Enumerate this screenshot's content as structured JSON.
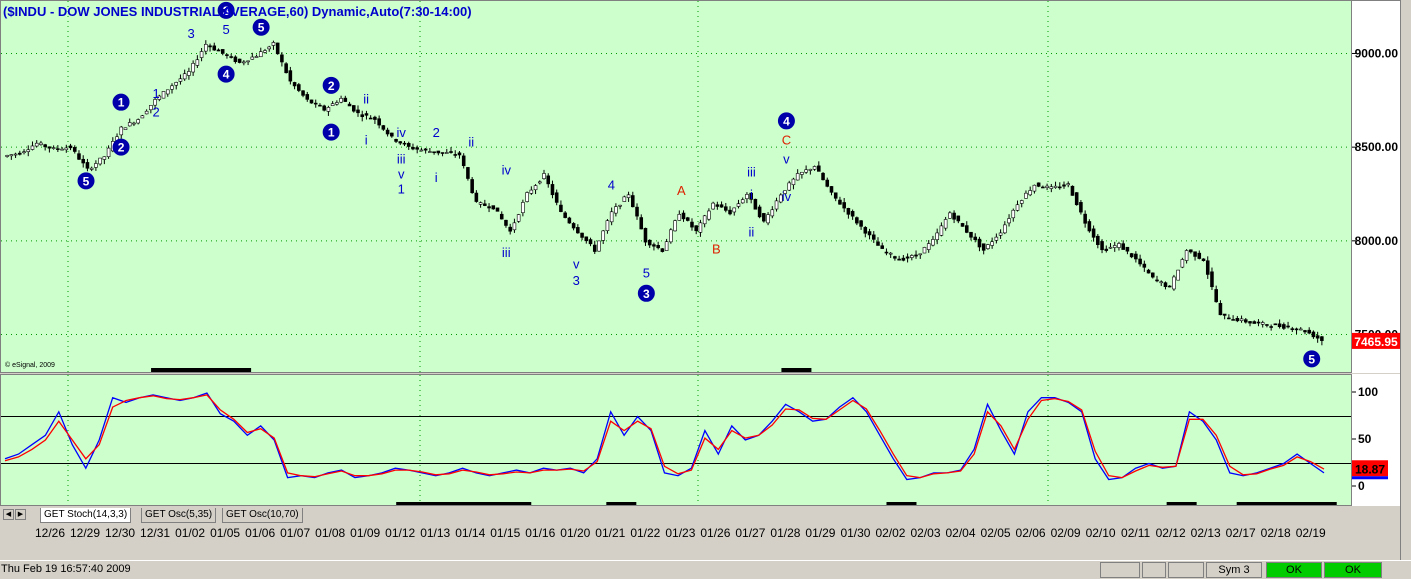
{
  "title": "($INDU - DOW JONES INDUSTRIAL AVERAGE,60) Dynamic,Auto(7:30-14:00)",
  "copyright": "© eSignal, 2009",
  "last_price": "7465.95",
  "colors": {
    "panel_bg": "#ccffcc",
    "wave_blue": "#0000cc",
    "wave_red": "#dd2200",
    "stoch_k": "#0000ff",
    "stoch_d": "#ff0000",
    "last_price_bg": "#ff0000"
  },
  "tabs": [
    {
      "label": "GET Stoch(14,3,3)",
      "active": true
    },
    {
      "label": "GET Osc(5,35)",
      "active": false
    },
    {
      "label": "GET Osc(10,70)",
      "active": false
    }
  ],
  "scroll_icons": [
    "left-arrow-icon",
    "right-arrow-icon"
  ],
  "status": {
    "datetime": "Thu Feb 19 16:57:40 2009",
    "sym": "Sym 3",
    "ok1": "OK",
    "ok2": "OK"
  },
  "chart_data": [
    {
      "type": "candlestick",
      "title": "($INDU - DOW JONES INDUSTRIAL AVERAGE,60) Dynamic,Auto(7:30-14:00)",
      "ylim": [
        7300,
        9280
      ],
      "y_ticks": [
        {
          "value": 9000,
          "label": "9000.00"
        },
        {
          "value": 8500,
          "label": "8500.00"
        },
        {
          "value": 8000,
          "label": "8000.00"
        },
        {
          "value": 7500,
          "label": "7500.00"
        }
      ],
      "x_ticks": [
        "12/26",
        "12/29",
        "12/30",
        "12/31",
        "01/02",
        "01/05",
        "01/06",
        "01/07",
        "01/08",
        "01/09",
        "01/12",
        "01/13",
        "01/14",
        "01/15",
        "01/16",
        "01/20",
        "01/21",
        "01/22",
        "01/23",
        "01/26",
        "01/27",
        "01/28",
        "01/29",
        "01/30",
        "02/02",
        "02/03",
        "02/04",
        "02/05",
        "02/06",
        "02/09",
        "02/10",
        "02/11",
        "02/12",
        "02/13",
        "02/17",
        "02/18",
        "02/19"
      ],
      "last_value": 7465.95,
      "close_path": [
        8450,
        8470,
        8520,
        8490,
        8500,
        8380,
        8450,
        8600,
        8650,
        8750,
        8830,
        8900,
        9050,
        9000,
        8950,
        8990,
        9050,
        8850,
        8750,
        8700,
        8760,
        8680,
        8650,
        8550,
        8500,
        8480,
        8470,
        8460,
        8200,
        8180,
        8050,
        8250,
        8350,
        8150,
        8050,
        7950,
        8150,
        8250,
        8000,
        7950,
        8150,
        8050,
        8200,
        8150,
        8250,
        8100,
        8250,
        8350,
        8400,
        8250,
        8150,
        8050,
        7950,
        7900,
        7920,
        8000,
        8150,
        8050,
        7950,
        8050,
        8200,
        8300,
        8280,
        8300,
        8100,
        7950,
        7980,
        7900,
        7800,
        7750,
        7950,
        7900,
        7600,
        7580,
        7560,
        7550,
        7540,
        7520,
        7470
      ],
      "waves": [
        {
          "label": "5",
          "style": "circle",
          "color": "blue",
          "x": "12/29",
          "y": 8320
        },
        {
          "label": "1",
          "style": "circle",
          "color": "blue",
          "x": "12/30",
          "y": 8740
        },
        {
          "label": "2",
          "style": "circle",
          "color": "blue",
          "x": "12/30",
          "y": 8500
        },
        {
          "label": "1",
          "style": "text",
          "color": "blue",
          "x": "12/31",
          "y": 8790
        },
        {
          "label": "2",
          "style": "text",
          "color": "blue",
          "x": "12/31",
          "y": 8690
        },
        {
          "label": "3",
          "style": "text",
          "color": "blue",
          "x": "01/02",
          "y": 9110
        },
        {
          "label": "3",
          "style": "circle",
          "color": "blue",
          "x": "01/05",
          "y": 9230
        },
        {
          "label": "5",
          "style": "text",
          "color": "blue",
          "x": "01/05",
          "y": 9130
        },
        {
          "label": "4",
          "style": "text",
          "color": "blue",
          "x": "01/05",
          "y": 8880
        },
        {
          "label": "4",
          "style": "circle",
          "color": "blue",
          "x": "01/05",
          "y": 8890
        },
        {
          "label": "5",
          "style": "circle",
          "color": "blue",
          "x": "01/06",
          "y": 9140
        },
        {
          "label": "1",
          "style": "circle",
          "color": "blue",
          "x": "01/08",
          "y": 8580
        },
        {
          "label": "2",
          "style": "circle",
          "color": "blue",
          "x": "01/08",
          "y": 8830
        },
        {
          "label": "ii",
          "style": "text",
          "color": "blue",
          "x": "01/09",
          "y": 8760
        },
        {
          "label": "i",
          "style": "text",
          "color": "blue",
          "x": "01/09",
          "y": 8540
        },
        {
          "label": "iv",
          "style": "text",
          "color": "blue",
          "x": "01/12",
          "y": 8580
        },
        {
          "label": "iii",
          "style": "text",
          "color": "blue",
          "x": "01/12",
          "y": 8440
        },
        {
          "label": "2",
          "style": "text",
          "color": "blue",
          "x": "01/13",
          "y": 8580
        },
        {
          "label": "v",
          "style": "text",
          "color": "blue",
          "x": "01/12",
          "y": 8360
        },
        {
          "label": "1",
          "style": "text",
          "color": "blue",
          "x": "01/12",
          "y": 8280
        },
        {
          "label": "ii",
          "style": "text",
          "color": "blue",
          "x": "01/14",
          "y": 8530
        },
        {
          "label": "i",
          "style": "text",
          "color": "blue",
          "x": "01/13",
          "y": 8340
        },
        {
          "label": "iv",
          "style": "text",
          "color": "blue",
          "x": "01/15",
          "y": 8380
        },
        {
          "label": "iii",
          "style": "text",
          "color": "blue",
          "x": "01/15",
          "y": 7940
        },
        {
          "label": "v",
          "style": "text",
          "color": "blue",
          "x": "01/20",
          "y": 7880
        },
        {
          "label": "3",
          "style": "text",
          "color": "blue",
          "x": "01/20",
          "y": 7790
        },
        {
          "label": "4",
          "style": "text",
          "color": "blue",
          "x": "01/21",
          "y": 8300
        },
        {
          "label": "5",
          "style": "text",
          "color": "blue",
          "x": "01/22",
          "y": 7830
        },
        {
          "label": "3",
          "style": "circle",
          "color": "blue",
          "x": "01/22",
          "y": 7720
        },
        {
          "label": "A",
          "style": "text",
          "color": "red",
          "x": "01/23",
          "y": 8270
        },
        {
          "label": "B",
          "style": "text",
          "color": "red",
          "x": "01/26",
          "y": 7960
        },
        {
          "label": "i",
          "style": "text",
          "color": "blue",
          "x": "01/27",
          "y": 8250
        },
        {
          "label": "ii",
          "style": "text",
          "color": "blue",
          "x": "01/27",
          "y": 8050
        },
        {
          "label": "iii",
          "style": "text",
          "color": "blue",
          "x": "01/27",
          "y": 8370
        },
        {
          "label": "iv",
          "style": "text",
          "color": "blue",
          "x": "01/28",
          "y": 8240
        },
        {
          "label": "v",
          "style": "text",
          "color": "blue",
          "x": "01/28",
          "y": 8440
        },
        {
          "label": "C",
          "style": "text",
          "color": "red",
          "x": "01/28",
          "y": 8540
        },
        {
          "label": "4",
          "style": "circle",
          "color": "blue",
          "x": "01/28",
          "y": 8640
        },
        {
          "label": "5",
          "style": "circle",
          "color": "blue",
          "x": "02/19",
          "y": 7370
        }
      ],
      "bars": [
        {
          "x_from": "12/31",
          "x_to": "01/05",
          "y": 9380
        },
        {
          "x_from": "01/28",
          "x_to": "01/28",
          "y": 9380
        }
      ]
    },
    {
      "type": "line",
      "title": "GET Stoch(14,3,3)",
      "ylim": [
        0,
        100
      ],
      "y_ticks": [
        100,
        50,
        0
      ],
      "hlines": [
        75,
        25
      ],
      "last_value": 18.87,
      "series": [
        {
          "name": "%K",
          "color": "#0000ff",
          "values": [
            30,
            35,
            45,
            55,
            80,
            45,
            20,
            50,
            95,
            90,
            95,
            98,
            95,
            92,
            95,
            100,
            78,
            70,
            55,
            65,
            50,
            10,
            12,
            10,
            15,
            18,
            10,
            12,
            15,
            20,
            18,
            15,
            12,
            15,
            20,
            15,
            12,
            15,
            18,
            15,
            20,
            18,
            20,
            15,
            30,
            80,
            55,
            75,
            60,
            15,
            12,
            20,
            60,
            35,
            65,
            50,
            55,
            70,
            88,
            80,
            70,
            72,
            85,
            95,
            80,
            55,
            30,
            8,
            10,
            15,
            15,
            18,
            40,
            88,
            60,
            35,
            80,
            95,
            95,
            90,
            80,
            30,
            8,
            10,
            20,
            25,
            20,
            22,
            80,
            70,
            50,
            15,
            12,
            15,
            20,
            25,
            35,
            25,
            15
          ]
        },
        {
          "name": "%D",
          "color": "#ff0000",
          "values": [
            28,
            32,
            40,
            50,
            70,
            50,
            30,
            45,
            85,
            92,
            95,
            97,
            94,
            93,
            95,
            98,
            82,
            72,
            58,
            62,
            52,
            15,
            12,
            11,
            14,
            17,
            12,
            12,
            14,
            18,
            18,
            16,
            13,
            14,
            18,
            16,
            13,
            14,
            16,
            15,
            18,
            18,
            19,
            17,
            27,
            70,
            60,
            70,
            62,
            22,
            14,
            18,
            52,
            40,
            60,
            52,
            55,
            66,
            83,
            82,
            73,
            72,
            82,
            92,
            83,
            60,
            35,
            12,
            10,
            14,
            15,
            17,
            35,
            80,
            65,
            40,
            72,
            92,
            94,
            91,
            82,
            38,
            12,
            10,
            17,
            23,
            21,
            22,
            72,
            72,
            55,
            22,
            13,
            14,
            19,
            23,
            32,
            27,
            19
          ]
        }
      ],
      "bars": [
        {
          "x_from": "01/12",
          "x_to": "01/15",
          "y": -22
        },
        {
          "x_from": "01/21",
          "x_to": "01/21",
          "y": -22
        },
        {
          "x_from": "02/02",
          "x_to": "02/02",
          "y": -22
        },
        {
          "x_from": "02/12",
          "x_to": "02/12",
          "y": -22
        },
        {
          "x_from": "02/17",
          "x_to": "02/19",
          "y": -22
        }
      ]
    }
  ]
}
